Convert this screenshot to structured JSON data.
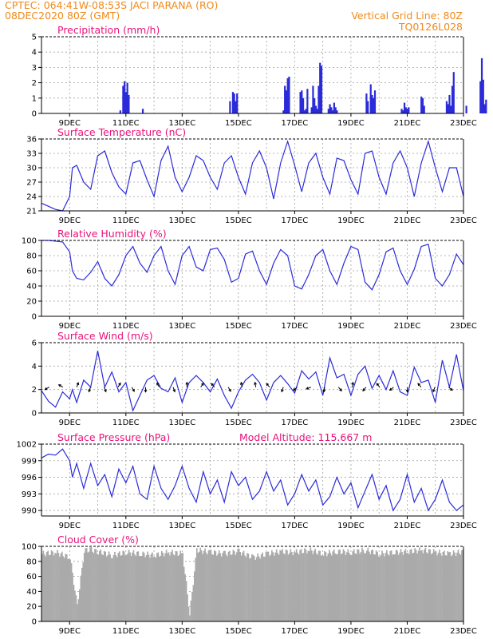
{
  "header": {
    "line1": "CPTEC:    064:41W-08:53S   JACI PARANA (RO)",
    "line2": "08DEC2020 80Z (GMT)",
    "right1": "Vertical Grid Line: 80Z",
    "right2": "TQ0126L028"
  },
  "colors": {
    "header": "#ee8a1c",
    "panel_title": "#e8127a",
    "series": "#2b2bd9",
    "cloud": "#aaaaaa",
    "arrow": "#000000"
  },
  "chart_data": [
    {
      "type": "bar",
      "title": "Precipitation (mm/h)",
      "x": [
        2.8,
        2.9,
        2.95,
        3.0,
        3.05,
        3.1,
        3.6,
        6.7,
        6.8,
        6.85,
        6.9,
        6.95,
        8.6,
        8.65,
        8.7,
        8.75,
        8.8,
        9.2,
        9.25,
        9.3,
        9.35,
        9.4,
        9.45,
        9.6,
        9.65,
        9.7,
        9.75,
        9.8,
        9.85,
        9.9,
        9.95,
        10.2,
        10.25,
        10.3,
        10.35,
        10.4,
        10.45,
        10.5,
        11.55,
        11.6,
        11.7,
        11.75,
        11.8,
        11.85,
        12.8,
        12.85,
        12.9,
        12.95,
        13.0,
        13.05,
        13.5,
        13.55,
        13.6,
        14.4,
        14.45,
        14.5,
        14.55,
        14.6,
        14.65,
        15.1,
        15.6,
        15.65,
        15.7,
        15.75,
        15.8
      ],
      "values": [
        0.2,
        1.8,
        2.1,
        1.4,
        2.0,
        1.2,
        0.3,
        0.8,
        1.4,
        1.3,
        0.8,
        1.3,
        0.2,
        1.8,
        1.5,
        2.3,
        2.4,
        1.4,
        1.5,
        1.0,
        0.2,
        0.3,
        1.6,
        0.4,
        1.8,
        1.0,
        0.5,
        0.3,
        1.8,
        3.3,
        3.1,
        0.3,
        0.6,
        0.4,
        0.2,
        0.7,
        0.4,
        0.2,
        1.3,
        0.8,
        1.9,
        1.2,
        1.0,
        1.5,
        0.3,
        0.2,
        0.7,
        0.4,
        0.3,
        0.4,
        1.1,
        1.0,
        0.5,
        0.8,
        0.6,
        1.2,
        0.5,
        1.8,
        2.7,
        0.5,
        2.1,
        3.6,
        2.2,
        0.6,
        0.9
      ],
      "xticklabels": [
        "9DEC",
        "11DEC",
        "13DEC",
        "15DEC",
        "17DEC",
        "19DEC",
        "21DEC",
        "23DEC"
      ],
      "ylim": [
        0,
        5
      ],
      "yticks": [
        "0",
        "1",
        "2",
        "3",
        "4",
        "5"
      ],
      "grid": true
    },
    {
      "type": "line",
      "title": "Surface Temperature (nC)",
      "x": [
        0.0,
        0.5,
        0.75,
        1.0,
        1.1,
        1.25,
        1.5,
        1.75,
        2.0,
        2.25,
        2.5,
        2.75,
        3.0,
        3.25,
        3.5,
        3.75,
        4.0,
        4.25,
        4.5,
        4.75,
        5.0,
        5.25,
        5.5,
        5.75,
        6.0,
        6.25,
        6.5,
        6.75,
        7.0,
        7.25,
        7.5,
        7.75,
        8.0,
        8.25,
        8.5,
        8.75,
        9.0,
        9.25,
        9.5,
        9.75,
        10.0,
        10.25,
        10.5,
        10.75,
        11.0,
        11.25,
        11.5,
        11.75,
        12.0,
        12.25,
        12.5,
        12.75,
        13.0,
        13.25,
        13.5,
        13.75,
        14.0,
        14.25,
        14.5,
        14.75,
        15.0
      ],
      "series": [
        {
          "values": [
            22.6,
            21.3,
            21.0,
            24.0,
            30.0,
            30.5,
            27.0,
            25.5,
            32.5,
            33.5,
            29.0,
            26.0,
            24.5,
            31.0,
            31.5,
            27.5,
            24.0,
            31.5,
            34.5,
            28.0,
            25.0,
            28.0,
            32.5,
            31.5,
            28.0,
            25.5,
            31.0,
            32.5,
            28.0,
            24.5,
            31.0,
            33.5,
            30.0,
            23.5,
            31.0,
            35.5,
            30.5,
            25.0,
            31.0,
            33.0,
            28.0,
            24.5,
            32.0,
            31.5,
            27.5,
            24.5,
            33.0,
            33.5,
            28.0,
            24.5,
            31.0,
            33.5,
            30.0,
            24.0,
            31.0,
            35.5,
            30.0,
            25.0,
            30.0,
            30.0,
            24.0
          ]
        }
      ],
      "xticklabels": [
        "9DEC",
        "11DEC",
        "13DEC",
        "15DEC",
        "17DEC",
        "19DEC",
        "21DEC",
        "23DEC"
      ],
      "ylim": [
        21,
        36
      ],
      "yticks": [
        "21",
        "24",
        "27",
        "30",
        "33",
        "36"
      ],
      "grid": true
    },
    {
      "type": "line",
      "title": "Relative Humidity (%)",
      "x": [
        0.0,
        0.25,
        0.5,
        0.75,
        1.0,
        1.1,
        1.25,
        1.5,
        1.75,
        2.0,
        2.25,
        2.5,
        2.75,
        3.0,
        3.25,
        3.5,
        3.75,
        4.0,
        4.25,
        4.5,
        4.75,
        5.0,
        5.25,
        5.5,
        5.75,
        6.0,
        6.25,
        6.5,
        6.75,
        7.0,
        7.25,
        7.5,
        7.75,
        8.0,
        8.25,
        8.5,
        8.75,
        9.0,
        9.25,
        9.5,
        9.75,
        10.0,
        10.25,
        10.5,
        10.75,
        11.0,
        11.25,
        11.5,
        11.75,
        12.0,
        12.25,
        12.5,
        12.75,
        13.0,
        13.25,
        13.5,
        13.75,
        14.0,
        14.25,
        14.5,
        14.75,
        15.0
      ],
      "series": [
        {
          "values": [
            100,
            100,
            99,
            98,
            85,
            60,
            50,
            48,
            58,
            72,
            50,
            40,
            55,
            80,
            92,
            70,
            58,
            80,
            92,
            60,
            42,
            80,
            92,
            65,
            60,
            88,
            90,
            75,
            45,
            50,
            82,
            86,
            60,
            42,
            70,
            88,
            80,
            40,
            36,
            55,
            80,
            88,
            60,
            42,
            70,
            92,
            88,
            45,
            35,
            55,
            85,
            90,
            60,
            42,
            62,
            92,
            95,
            50,
            40,
            55,
            82,
            68
          ]
        }
      ],
      "xticklabels": [
        "9DEC",
        "11DEC",
        "13DEC",
        "15DEC",
        "17DEC",
        "19DEC",
        "21DEC",
        "23DEC"
      ],
      "ylim": [
        0,
        100
      ],
      "yticks": [
        "0",
        "20",
        "40",
        "60",
        "80",
        "100"
      ],
      "grid": true
    },
    {
      "type": "line",
      "title": "Surface Wind (m/s)",
      "x": [
        0.0,
        0.25,
        0.5,
        0.75,
        1.0,
        1.1,
        1.25,
        1.5,
        1.75,
        2.0,
        2.25,
        2.5,
        2.75,
        3.0,
        3.25,
        3.5,
        3.75,
        4.0,
        4.25,
        4.5,
        4.75,
        5.0,
        5.25,
        5.5,
        5.75,
        6.0,
        6.25,
        6.5,
        6.75,
        7.0,
        7.25,
        7.5,
        7.75,
        8.0,
        8.25,
        8.5,
        8.75,
        9.0,
        9.25,
        9.5,
        9.75,
        10.0,
        10.25,
        10.5,
        10.75,
        11.0,
        11.25,
        11.5,
        11.75,
        12.0,
        12.25,
        12.5,
        12.75,
        13.0,
        13.25,
        13.5,
        13.75,
        14.0,
        14.25,
        14.5,
        14.75,
        15.0
      ],
      "series": [
        {
          "values": [
            1.9,
            1.0,
            0.5,
            1.8,
            1.2,
            2.0,
            0.9,
            2.8,
            2.2,
            5.3,
            2.2,
            3.5,
            1.8,
            2.6,
            0.2,
            1.5,
            2.8,
            3.2,
            2.1,
            1.8,
            3.0,
            0.9,
            2.6,
            3.2,
            2.6,
            1.8,
            2.9,
            1.5,
            0.4,
            1.8,
            2.8,
            3.3,
            2.6,
            1.1,
            2.6,
            3.2,
            2.5,
            1.7,
            3.6,
            2.9,
            3.5,
            1.5,
            4.7,
            3.0,
            3.3,
            1.5,
            3.3,
            4.0,
            2.1,
            3.2,
            2.0,
            3.6,
            1.8,
            1.5,
            3.9,
            2.6,
            2.8,
            0.9,
            4.5,
            2.2,
            5.0,
            1.9
          ]
        }
      ],
      "wind_arrows_deg": [
        240,
        300,
        20,
        200,
        160,
        30,
        150,
        180,
        330,
        160,
        0,
        35,
        320,
        150,
        350,
        350,
        320,
        200,
        230,
        250,
        190,
        140,
        10,
        220,
        320,
        230,
        180,
        320,
        200,
        130
      ],
      "xticklabels": [
        "9DEC",
        "11DEC",
        "13DEC",
        "15DEC",
        "17DEC",
        "19DEC",
        "21DEC",
        "23DEC"
      ],
      "ylim": [
        0,
        6
      ],
      "yticks": [
        "0",
        "2",
        "4",
        "6"
      ],
      "grid": true
    },
    {
      "type": "line",
      "title": "Surface Pressure (hPa)",
      "subtitle": "Model Altitude: 115.667  m",
      "x": [
        0.0,
        0.25,
        0.5,
        0.75,
        1.0,
        1.1,
        1.25,
        1.5,
        1.75,
        2.0,
        2.25,
        2.5,
        2.75,
        3.0,
        3.25,
        3.5,
        3.75,
        4.0,
        4.25,
        4.5,
        4.75,
        5.0,
        5.25,
        5.5,
        5.75,
        6.0,
        6.25,
        6.5,
        6.75,
        7.0,
        7.25,
        7.5,
        7.75,
        8.0,
        8.25,
        8.5,
        8.75,
        9.0,
        9.25,
        9.5,
        9.75,
        10.0,
        10.25,
        10.5,
        10.75,
        11.0,
        11.25,
        11.5,
        11.75,
        12.0,
        12.25,
        12.5,
        12.75,
        13.0,
        13.25,
        13.5,
        13.75,
        14.0,
        14.25,
        14.5,
        14.75,
        15.0
      ],
      "series": [
        {
          "values": [
            999.5,
            1000.2,
            1000.0,
            1001.1,
            999.0,
            996.0,
            998.5,
            994.0,
            998.5,
            994.5,
            996.5,
            992.5,
            997.5,
            995.0,
            998.0,
            993.0,
            992.0,
            998.0,
            994.0,
            992.0,
            994.5,
            998.0,
            994.0,
            991.5,
            997.0,
            993.0,
            995.5,
            991.5,
            997.0,
            994.5,
            996.0,
            992.0,
            993.5,
            997.0,
            993.5,
            995.5,
            991.0,
            993.0,
            996.5,
            993.5,
            995.5,
            991.0,
            992.5,
            996.0,
            993.0,
            995.0,
            990.5,
            993.5,
            996.5,
            992.0,
            994.5,
            990.0,
            992.0,
            996.5,
            991.5,
            994.0,
            990.0,
            992.0,
            995.5,
            991.5,
            990.0,
            991.0
          ]
        }
      ],
      "xticklabels": [
        "9DEC",
        "11DEC",
        "13DEC",
        "15DEC",
        "17DEC",
        "19DEC",
        "21DEC",
        "23DEC"
      ],
      "ylim": [
        989,
        1002
      ],
      "yticks": [
        "990",
        "993",
        "996",
        "999",
        "1002"
      ],
      "grid": true
    },
    {
      "type": "area",
      "title": "Cloud Cover (%)",
      "x": [
        0.0,
        0.5,
        1.0,
        1.25,
        1.5,
        1.75,
        2.0,
        2.5,
        3.0,
        3.5,
        4.0,
        4.5,
        5.0,
        5.25,
        5.5,
        6.0,
        6.5,
        7.0,
        7.5,
        8.0,
        8.5,
        9.0,
        9.5,
        10.0,
        10.5,
        11.0,
        11.5,
        12.0,
        12.5,
        13.0,
        13.5,
        14.0,
        14.5,
        15.0
      ],
      "values": [
        90,
        92,
        85,
        20,
        95,
        95,
        93,
        88,
        92,
        90,
        88,
        92,
        90,
        10,
        95,
        92,
        90,
        93,
        85,
        90,
        93,
        92,
        95,
        90,
        93,
        92,
        95,
        90,
        92,
        93,
        95,
        92,
        90,
        93
      ],
      "xticklabels": [
        "9DEC",
        "11DEC",
        "13DEC",
        "15DEC",
        "17DEC",
        "19DEC",
        "21DEC",
        "23DEC"
      ],
      "ylim": [
        0,
        100
      ],
      "yticks": [
        "0",
        "20",
        "40",
        "60",
        "80",
        "100"
      ],
      "grid": true
    }
  ]
}
